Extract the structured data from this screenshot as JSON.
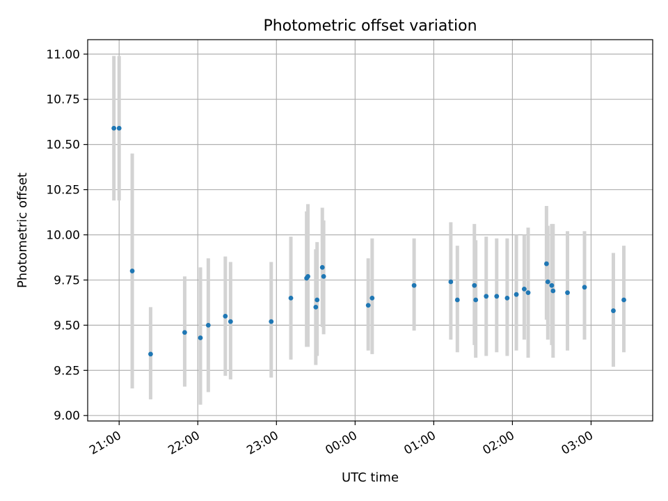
{
  "chart_data": {
    "type": "scatter",
    "title": "Photometric offset variation",
    "xlabel": "UTC time",
    "ylabel": "Photometric offset",
    "x_ticks": [
      "21:00",
      "22:00",
      "23:00",
      "00:00",
      "01:00",
      "02:00",
      "03:00"
    ],
    "y_ticks": [
      "9.00",
      "9.25",
      "9.50",
      "9.75",
      "10.00",
      "10.25",
      "10.50",
      "10.75",
      "11.00"
    ],
    "xlim": [
      "20:36",
      "03:47"
    ],
    "ylim": [
      8.97,
      11.08
    ],
    "grid": true,
    "point_color": "#1f77b4",
    "errorbar_color": "#d3d3d3",
    "series": [
      {
        "points": [
          {
            "t": "20:56",
            "y": 10.59,
            "lo": 10.19,
            "hi": 10.99
          },
          {
            "t": "21:00",
            "y": 10.59,
            "lo": 10.19,
            "hi": 10.99
          },
          {
            "t": "21:10",
            "y": 9.8,
            "lo": 9.15,
            "hi": 10.45
          },
          {
            "t": "21:24",
            "y": 9.34,
            "lo": 9.09,
            "hi": 9.6
          },
          {
            "t": "21:50",
            "y": 9.46,
            "lo": 9.16,
            "hi": 9.77
          },
          {
            "t": "22:02",
            "y": 9.43,
            "lo": 9.06,
            "hi": 9.82
          },
          {
            "t": "22:08",
            "y": 9.5,
            "lo": 9.13,
            "hi": 9.87
          },
          {
            "t": "22:21",
            "y": 9.55,
            "lo": 9.22,
            "hi": 9.88
          },
          {
            "t": "22:25",
            "y": 9.52,
            "lo": 9.2,
            "hi": 9.85
          },
          {
            "t": "22:56",
            "y": 9.52,
            "lo": 9.21,
            "hi": 9.85
          },
          {
            "t": "23:11",
            "y": 9.65,
            "lo": 9.31,
            "hi": 9.99
          },
          {
            "t": "23:23",
            "y": 9.76,
            "lo": 9.38,
            "hi": 10.13
          },
          {
            "t": "23:24",
            "y": 9.77,
            "lo": 9.38,
            "hi": 10.17
          },
          {
            "t": "23:30",
            "y": 9.6,
            "lo": 9.28,
            "hi": 9.92
          },
          {
            "t": "23:31",
            "y": 9.64,
            "lo": 9.33,
            "hi": 9.96
          },
          {
            "t": "23:35",
            "y": 9.82,
            "lo": 9.49,
            "hi": 10.15
          },
          {
            "t": "23:36",
            "y": 9.77,
            "lo": 9.45,
            "hi": 10.08
          },
          {
            "t": "00:10",
            "y": 9.61,
            "lo": 9.36,
            "hi": 9.87
          },
          {
            "t": "00:13",
            "y": 9.65,
            "lo": 9.34,
            "hi": 9.98
          },
          {
            "t": "00:45",
            "y": 9.72,
            "lo": 9.47,
            "hi": 9.98
          },
          {
            "t": "01:13",
            "y": 9.74,
            "lo": 9.42,
            "hi": 10.07
          },
          {
            "t": "01:18",
            "y": 9.64,
            "lo": 9.35,
            "hi": 9.94
          },
          {
            "t": "01:31",
            "y": 9.72,
            "lo": 9.39,
            "hi": 10.06
          },
          {
            "t": "01:32",
            "y": 9.64,
            "lo": 9.32,
            "hi": 9.97
          },
          {
            "t": "01:40",
            "y": 9.66,
            "lo": 9.33,
            "hi": 9.99
          },
          {
            "t": "01:48",
            "y": 9.66,
            "lo": 9.35,
            "hi": 9.98
          },
          {
            "t": "01:56",
            "y": 9.65,
            "lo": 9.33,
            "hi": 9.98
          },
          {
            "t": "02:03",
            "y": 9.67,
            "lo": 9.36,
            "hi": 10.0
          },
          {
            "t": "02:09",
            "y": 9.7,
            "lo": 9.42,
            "hi": 10.0
          },
          {
            "t": "02:12",
            "y": 9.68,
            "lo": 9.32,
            "hi": 10.04
          },
          {
            "t": "02:26",
            "y": 9.84,
            "lo": 9.53,
            "hi": 10.16
          },
          {
            "t": "02:27",
            "y": 9.74,
            "lo": 9.42,
            "hi": 10.05
          },
          {
            "t": "02:30",
            "y": 9.72,
            "lo": 9.39,
            "hi": 10.06
          },
          {
            "t": "02:31",
            "y": 9.69,
            "lo": 9.32,
            "hi": 10.06
          },
          {
            "t": "02:42",
            "y": 9.68,
            "lo": 9.36,
            "hi": 10.02
          },
          {
            "t": "02:55",
            "y": 9.71,
            "lo": 9.42,
            "hi": 10.02
          },
          {
            "t": "03:17",
            "y": 9.58,
            "lo": 9.27,
            "hi": 9.9
          },
          {
            "t": "03:25",
            "y": 9.64,
            "lo": 9.35,
            "hi": 9.94
          }
        ]
      }
    ]
  }
}
